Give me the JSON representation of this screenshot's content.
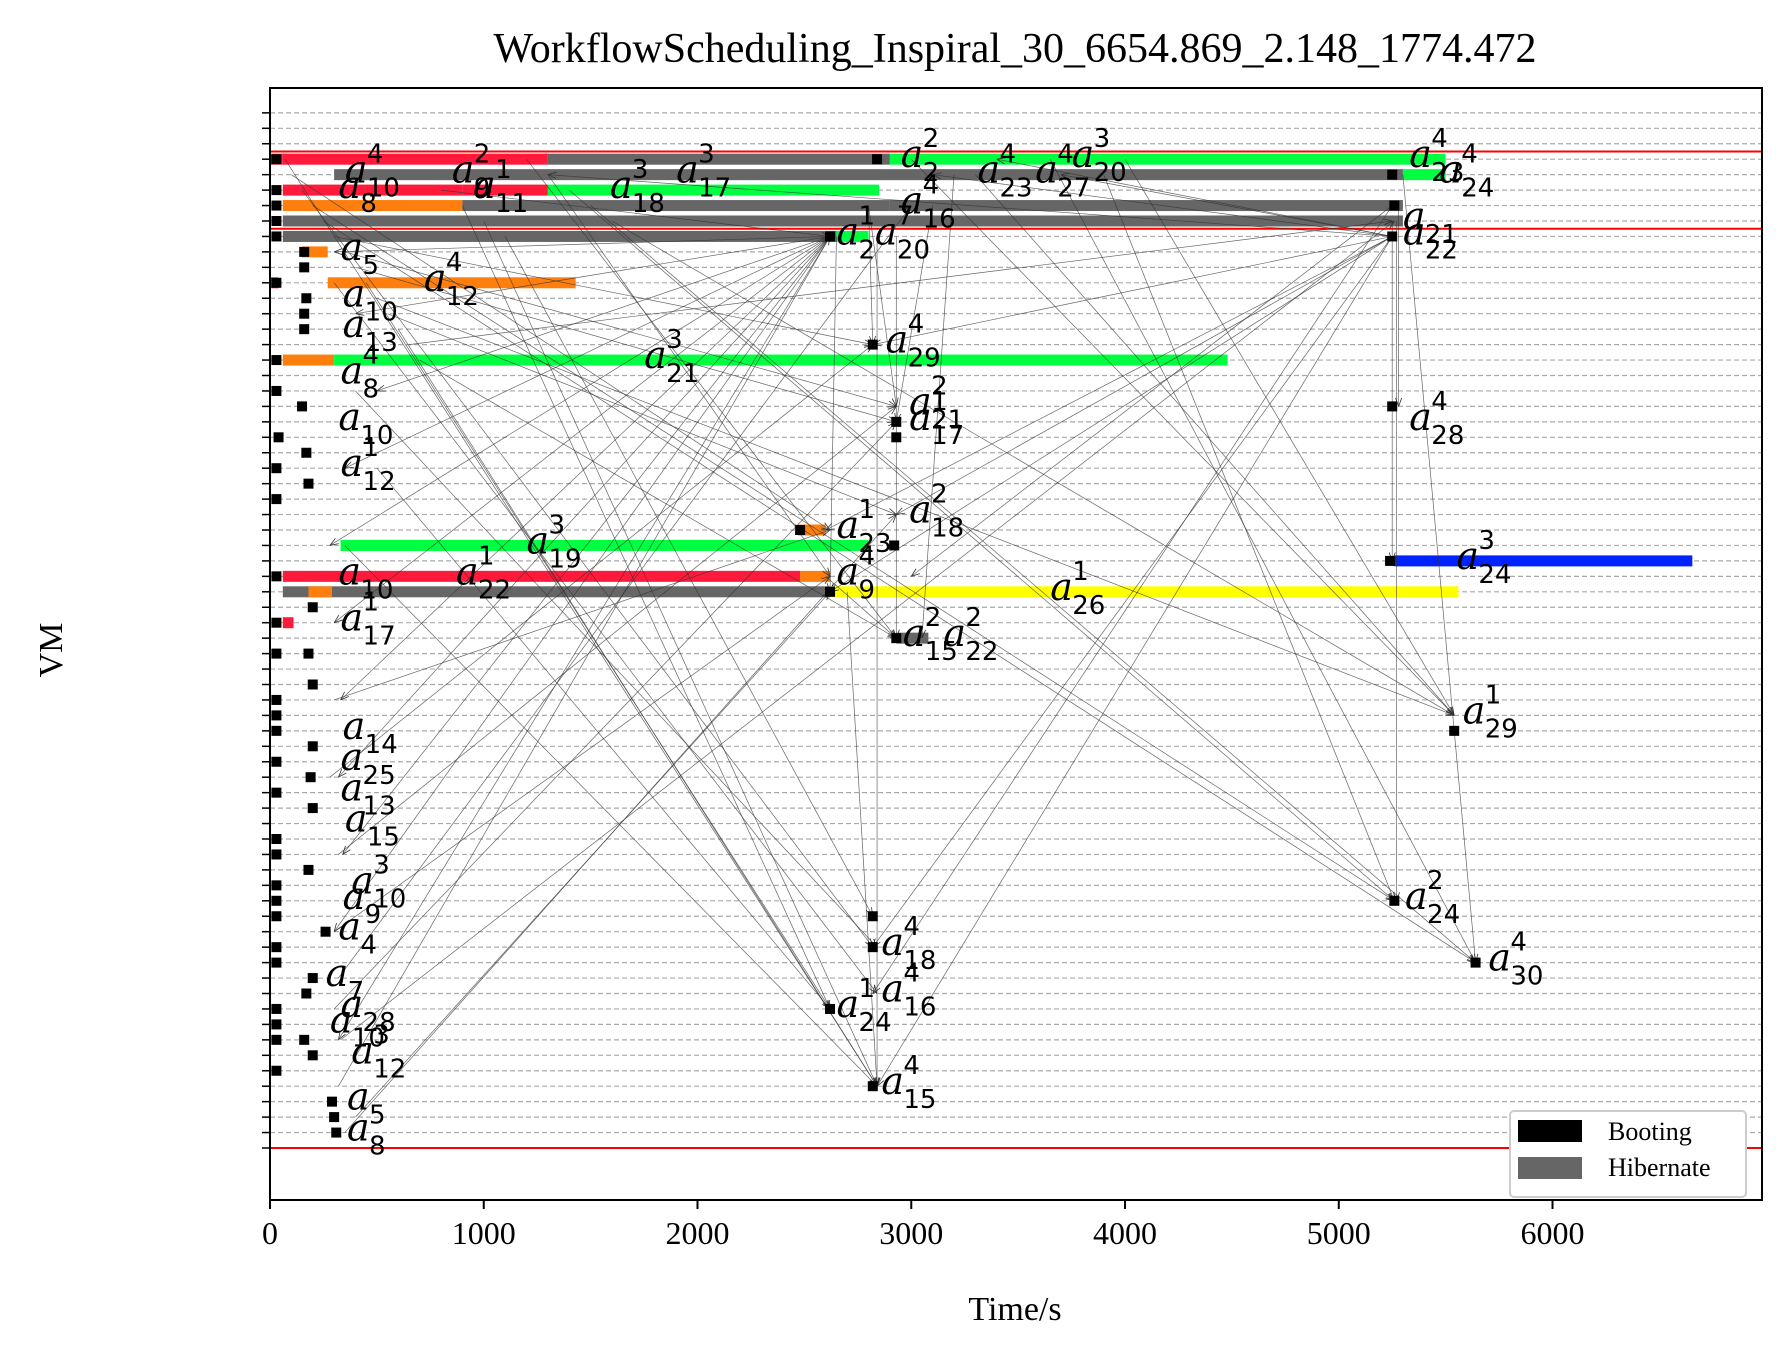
{
  "chart_data": {
    "type": "gantt",
    "title": "WorkflowScheduling_Inspiral_30_6654.869_2.148_1774.472",
    "xlabel": "Time/s",
    "ylabel": "VM",
    "xlim": [
      0,
      6980
    ],
    "xticks": [
      0,
      1000,
      2000,
      3000,
      4000,
      5000,
      6000
    ],
    "row_count": 68,
    "grid": "dashed horizontal",
    "legend": {
      "placement": "bottom-right",
      "entries": [
        {
          "label": "Booting",
          "color": "#000000"
        },
        {
          "label": "Hibernate",
          "color": "#666666"
        }
      ]
    },
    "separators": [
      1.0,
      60.5,
      65.5
    ],
    "bars": [
      {
        "row": 65,
        "start": 0,
        "end": 60,
        "kind": "color",
        "color": "#ff1a3c"
      },
      {
        "row": 65,
        "start": 60,
        "end": 1300,
        "kind": "color",
        "color": "#ff1a3c"
      },
      {
        "row": 65,
        "start": 1300,
        "end": 2900,
        "kind": "hibernate"
      },
      {
        "row": 65,
        "start": 2900,
        "end": 5500,
        "kind": "color",
        "color": "#00ff40"
      },
      {
        "row": 64,
        "start": 300,
        "end": 5300,
        "kind": "hibernate"
      },
      {
        "row": 64,
        "start": 5300,
        "end": 5500,
        "kind": "color",
        "color": "#00ff40"
      },
      {
        "row": 63,
        "start": 60,
        "end": 900,
        "kind": "color",
        "color": "#ff1a3c"
      },
      {
        "row": 63,
        "start": 900,
        "end": 1300,
        "kind": "color",
        "color": "#ff1a3c"
      },
      {
        "row": 63,
        "start": 1300,
        "end": 2850,
        "kind": "color",
        "color": "#00ff40"
      },
      {
        "row": 62,
        "start": 60,
        "end": 900,
        "kind": "color",
        "color": "#ff7f0e"
      },
      {
        "row": 62,
        "start": 900,
        "end": 2900,
        "kind": "hibernate"
      },
      {
        "row": 62,
        "start": 2900,
        "end": 5300,
        "kind": "hibernate"
      },
      {
        "row": 61,
        "start": 60,
        "end": 5300,
        "kind": "hibernate"
      },
      {
        "row": 60,
        "start": 60,
        "end": 2650,
        "kind": "hibernate"
      },
      {
        "row": 60,
        "start": 2650,
        "end": 2800,
        "kind": "color",
        "color": "#00ff40"
      },
      {
        "row": 59,
        "start": 150,
        "end": 270,
        "kind": "color",
        "color": "#ff7f0e"
      },
      {
        "row": 57,
        "start": 270,
        "end": 1430,
        "kind": "color",
        "color": "#ff7f0e"
      },
      {
        "row": 57,
        "start": 0,
        "end": 40,
        "kind": "color",
        "color": "#ff1a3c"
      },
      {
        "row": 52,
        "start": 60,
        "end": 300,
        "kind": "color",
        "color": "#ff7f0e"
      },
      {
        "row": 52,
        "start": 300,
        "end": 4480,
        "kind": "color",
        "color": "#00ff40"
      },
      {
        "row": 41,
        "start": 2470,
        "end": 2600,
        "kind": "color",
        "color": "#ff7f0e"
      },
      {
        "row": 40,
        "start": 330,
        "end": 2800,
        "kind": "color",
        "color": "#00ff40"
      },
      {
        "row": 39,
        "start": 5260,
        "end": 6654,
        "kind": "color",
        "color": "#0022ff"
      },
      {
        "row": 38,
        "start": 60,
        "end": 2480,
        "kind": "color",
        "color": "#ff1a3c"
      },
      {
        "row": 38,
        "start": 2480,
        "end": 2620,
        "kind": "color",
        "color": "#ff7f0e"
      },
      {
        "row": 37,
        "start": 60,
        "end": 2620,
        "kind": "hibernate"
      },
      {
        "row": 37,
        "start": 2620,
        "end": 5560,
        "kind": "color",
        "color": "#ffff00"
      },
      {
        "row": 37,
        "start": 180,
        "end": 290,
        "kind": "color",
        "color": "#ff7f0e"
      },
      {
        "row": 35,
        "start": 60,
        "end": 110,
        "kind": "color",
        "color": "#ff1a3c"
      },
      {
        "row": 34,
        "start": 2930,
        "end": 3080,
        "kind": "hibernate"
      }
    ],
    "boot_markers": [
      [
        30,
        65
      ],
      [
        30,
        63
      ],
      [
        30,
        62
      ],
      [
        30,
        61
      ],
      [
        30,
        60
      ],
      [
        30,
        57
      ],
      [
        30,
        52
      ],
      [
        30,
        50
      ],
      [
        40,
        47
      ],
      [
        30,
        45
      ],
      [
        30,
        43
      ],
      [
        30,
        38
      ],
      [
        30,
        35
      ],
      [
        30,
        33
      ],
      [
        30,
        30
      ],
      [
        30,
        29
      ],
      [
        30,
        28
      ],
      [
        30,
        26
      ],
      [
        30,
        24
      ],
      [
        30,
        21
      ],
      [
        30,
        20
      ],
      [
        30,
        18
      ],
      [
        30,
        17
      ],
      [
        30,
        16
      ],
      [
        30,
        14
      ],
      [
        30,
        13
      ],
      [
        30,
        10
      ],
      [
        30,
        9
      ],
      [
        30,
        8
      ],
      [
        30,
        6
      ],
      [
        160,
        59
      ],
      [
        160,
        58
      ],
      [
        170,
        56
      ],
      [
        160,
        55
      ],
      [
        160,
        54
      ],
      [
        150,
        49
      ],
      [
        170,
        46
      ],
      [
        180,
        44
      ],
      [
        200,
        36
      ],
      [
        180,
        33
      ],
      [
        200,
        31
      ],
      [
        200,
        27
      ],
      [
        190,
        25
      ],
      [
        200,
        23
      ],
      [
        180,
        19
      ],
      [
        200,
        12
      ],
      [
        170,
        11
      ],
      [
        160,
        8
      ],
      [
        200,
        7
      ],
      [
        260,
        15
      ],
      [
        290,
        4
      ],
      [
        300,
        3
      ],
      [
        310,
        2
      ],
      [
        2480,
        41
      ],
      [
        2930,
        48
      ],
      [
        2930,
        47
      ],
      [
        2920,
        40
      ],
      [
        2930,
        34
      ],
      [
        2620,
        60
      ],
      [
        2620,
        37
      ],
      [
        2820,
        53
      ],
      [
        2820,
        16
      ],
      [
        2820,
        14
      ],
      [
        2620,
        10
      ],
      [
        2820,
        5
      ],
      [
        5240,
        39
      ],
      [
        5250,
        60
      ],
      [
        5260,
        62
      ],
      [
        5250,
        49
      ],
      [
        5260,
        17
      ],
      [
        5540,
        28
      ],
      [
        5640,
        13
      ],
      [
        2840,
        65
      ],
      [
        5250,
        64
      ]
    ],
    "task_labels": [
      {
        "name": "a",
        "sub": "9",
        "sup": "4",
        "x": 2650,
        "row": 38
      },
      {
        "name": "a",
        "sub": "26",
        "sup": "1",
        "x": 3650,
        "row": 37
      },
      {
        "name": "a",
        "sub": "22",
        "sup": "1",
        "x": 870,
        "row": 38
      },
      {
        "name": "a",
        "sub": "19",
        "sup": "3",
        "x": 1200,
        "row": 40
      },
      {
        "name": "a",
        "sub": "24",
        "sup": "3",
        "x": 5550,
        "row": 39
      },
      {
        "name": "a",
        "sub": "23",
        "sup": "1",
        "x": 2650,
        "row": 41
      },
      {
        "name": "a",
        "sub": "18",
        "sup": "2",
        "x": 2990,
        "row": 42
      },
      {
        "name": "a",
        "sub": "21",
        "sup": "3",
        "x": 1750,
        "row": 52
      },
      {
        "name": "a",
        "sub": "29",
        "sup": "4",
        "x": 2880,
        "row": 53
      },
      {
        "name": "a",
        "sub": "28",
        "sup": "4",
        "x": 5330,
        "row": 48
      },
      {
        "name": "a",
        "sub": "21",
        "sup": "2",
        "x": 2990,
        "row": 49
      },
      {
        "name": "a",
        "sub": "17",
        "sup": "1",
        "x": 2990,
        "row": 48
      },
      {
        "name": "a",
        "sub": "12",
        "sup": "4",
        "x": 720,
        "row": 57
      },
      {
        "name": "a",
        "sub": "18",
        "sup": "3",
        "x": 1590,
        "row": 63
      },
      {
        "name": "a",
        "sub": "17",
        "sup": "3",
        "x": 1900,
        "row": 64
      },
      {
        "name": "a",
        "sub": "11",
        "sup": "1",
        "x": 950,
        "row": 63
      },
      {
        "name": "a",
        "sub": "29",
        "sup": "1",
        "x": 5580,
        "row": 29
      },
      {
        "name": "a",
        "sub": "15",
        "sup": "2",
        "x": 2960,
        "row": 34
      },
      {
        "name": "a",
        "sub": "22",
        "sup": "2",
        "x": 3150,
        "row": 34
      },
      {
        "name": "a",
        "sub": "24",
        "sup": "2",
        "x": 5310,
        "row": 17
      },
      {
        "name": "a",
        "sub": "30",
        "sup": "4",
        "x": 5700,
        "row": 13
      },
      {
        "name": "a",
        "sub": "18",
        "sup": "4",
        "x": 2860,
        "row": 14
      },
      {
        "name": "a",
        "sub": "16",
        "sup": "4",
        "x": 2860,
        "row": 11
      },
      {
        "name": "a",
        "sub": "24",
        "sup": "1",
        "x": 2650,
        "row": 10
      },
      {
        "name": "a",
        "sub": "15",
        "sup": "4",
        "x": 2860,
        "row": 5
      },
      {
        "name": "a",
        "sub": "20",
        "sup": "3",
        "x": 3750,
        "row": 65
      },
      {
        "name": "a",
        "sub": "23",
        "sup": "4",
        "x": 5330,
        "row": 65
      },
      {
        "name": "a",
        "sub": "24",
        "sup": "4",
        "x": 5470,
        "row": 64
      },
      {
        "name": "a",
        "sub": "2",
        "sup": "1",
        "x": 2650,
        "row": 60
      },
      {
        "name": "a",
        "sub": "20",
        "sup": "7",
        "x": 2830,
        "row": 60
      },
      {
        "name": "a",
        "sub": "16",
        "sup": "4",
        "x": 2950,
        "row": 62
      },
      {
        "name": "a",
        "sub": "2",
        "sup": "2",
        "x": 2950,
        "row": 65
      },
      {
        "name": "a",
        "sub": "23",
        "sup": "4",
        "x": 3310,
        "row": 64
      },
      {
        "name": "a",
        "sub": "27",
        "sup": "4",
        "x": 3580,
        "row": 64
      },
      {
        "name": "a",
        "sub": "21",
        "sup": "",
        "x": 5300,
        "row": 61
      },
      {
        "name": "a",
        "sub": "22",
        "sup": "",
        "x": 5300,
        "row": 60
      },
      {
        "name": "a",
        "sub": "10",
        "sup": "4",
        "x": 350,
        "row": 64
      },
      {
        "name": "a",
        "sub": "9",
        "sup": "2",
        "x": 850,
        "row": 64
      },
      {
        "name": "a",
        "sub": "8",
        "sup": "",
        "x": 320,
        "row": 63
      },
      {
        "name": "a",
        "sub": "5",
        "sup": "",
        "x": 330,
        "row": 59
      },
      {
        "name": "a",
        "sub": "10",
        "sup": "",
        "x": 340,
        "row": 56
      },
      {
        "name": "a",
        "sub": "13",
        "sup": "",
        "x": 340,
        "row": 54
      },
      {
        "name": "a",
        "sub": "8",
        "sup": "4",
        "x": 330,
        "row": 51
      },
      {
        "name": "a",
        "sub": "10",
        "sup": "",
        "x": 320,
        "row": 48
      },
      {
        "name": "a",
        "sub": "12",
        "sup": "1",
        "x": 330,
        "row": 45
      },
      {
        "name": "a",
        "sub": "10",
        "sup": "",
        "x": 320,
        "row": 38
      },
      {
        "name": "a",
        "sub": "17",
        "sup": "1",
        "x": 330,
        "row": 35
      },
      {
        "name": "a",
        "sub": "14",
        "sup": "",
        "x": 340,
        "row": 28
      },
      {
        "name": "a",
        "sub": "25",
        "sup": "",
        "x": 330,
        "row": 26
      },
      {
        "name": "a",
        "sub": "13",
        "sup": "",
        "x": 330,
        "row": 24
      },
      {
        "name": "a",
        "sub": "15",
        "sup": "",
        "x": 350,
        "row": 22
      },
      {
        "name": "a",
        "sub": "10",
        "sup": "3",
        "x": 380,
        "row": 18
      },
      {
        "name": "a",
        "sub": "9",
        "sup": "",
        "x": 340,
        "row": 17
      },
      {
        "name": "a",
        "sub": "4",
        "sup": "",
        "x": 320,
        "row": 15
      },
      {
        "name": "a",
        "sub": "7",
        "sup": "",
        "x": 260,
        "row": 12
      },
      {
        "name": "a",
        "sub": "28",
        "sup": "",
        "x": 330,
        "row": 10
      },
      {
        "name": "a",
        "sub": "10",
        "sup": "",
        "x": 280,
        "row": 9
      },
      {
        "name": "a",
        "sub": "12",
        "sup": "3",
        "x": 380,
        "row": 7
      },
      {
        "name": "a",
        "sub": "5",
        "sup": "",
        "x": 360,
        "row": 4
      },
      {
        "name": "a",
        "sub": "8",
        "sup": "",
        "x": 360,
        "row": 2
      }
    ],
    "edges": [
      [
        70,
        65,
        2840,
        5
      ],
      [
        100,
        64,
        2620,
        41
      ],
      [
        150,
        63,
        2820,
        14
      ],
      [
        200,
        62,
        5260,
        17
      ],
      [
        250,
        61,
        5640,
        13
      ],
      [
        300,
        60,
        2820,
        53
      ],
      [
        350,
        59,
        2930,
        49
      ],
      [
        400,
        58,
        2930,
        48
      ],
      [
        450,
        57,
        2620,
        10
      ],
      [
        500,
        56,
        5540,
        29
      ],
      [
        550,
        55,
        2930,
        42
      ],
      [
        600,
        54,
        2840,
        5
      ],
      [
        650,
        53,
        5250,
        61
      ],
      [
        700,
        52,
        2930,
        34
      ],
      [
        800,
        63,
        2620,
        60
      ],
      [
        900,
        62,
        2620,
        10
      ],
      [
        1000,
        61,
        2840,
        5
      ],
      [
        1100,
        60,
        2820,
        16
      ],
      [
        1200,
        65,
        2930,
        34
      ],
      [
        1300,
        64,
        2620,
        38
      ],
      [
        1400,
        63,
        5260,
        17
      ],
      [
        1500,
        62,
        5640,
        13
      ],
      [
        1600,
        61,
        5540,
        29
      ],
      [
        2620,
        60,
        300,
        59
      ],
      [
        2620,
        60,
        400,
        55
      ],
      [
        2620,
        60,
        500,
        50
      ],
      [
        2620,
        60,
        350,
        45
      ],
      [
        2620,
        60,
        280,
        40
      ],
      [
        2620,
        60,
        300,
        35
      ],
      [
        2620,
        60,
        330,
        30
      ],
      [
        2620,
        60,
        320,
        25
      ],
      [
        2620,
        60,
        340,
        20
      ],
      [
        2620,
        60,
        300,
        15
      ],
      [
        2620,
        60,
        320,
        8
      ],
      [
        2840,
        60,
        2840,
        5
      ],
      [
        2930,
        60,
        2930,
        34
      ],
      [
        2800,
        62,
        2820,
        53
      ],
      [
        2800,
        62,
        2930,
        49
      ],
      [
        3100,
        62,
        2930,
        48
      ],
      [
        3200,
        64,
        3050,
        34
      ],
      [
        5250,
        60,
        2840,
        5
      ],
      [
        5250,
        60,
        2820,
        14
      ],
      [
        5250,
        60,
        2620,
        37
      ],
      [
        5250,
        60,
        2820,
        53
      ],
      [
        5250,
        60,
        2930,
        42
      ],
      [
        5250,
        60,
        1300,
        64
      ],
      [
        5250,
        60,
        3100,
        64
      ],
      [
        5250,
        60,
        3400,
        65
      ],
      [
        5250,
        60,
        3700,
        64
      ],
      [
        5250,
        60,
        2600,
        41
      ],
      [
        5250,
        61,
        5250,
        39
      ],
      [
        5270,
        61,
        5270,
        17
      ],
      [
        5300,
        64,
        5640,
        13
      ],
      [
        5280,
        62,
        5280,
        49
      ],
      [
        5250,
        62,
        2820,
        11
      ],
      [
        5250,
        62,
        3000,
        38
      ],
      [
        2600,
        38,
        2930,
        34
      ],
      [
        2700,
        37,
        2840,
        5
      ],
      [
        3000,
        65,
        5540,
        29
      ],
      [
        3300,
        64,
        5540,
        29
      ],
      [
        3650,
        65,
        5640,
        13
      ],
      [
        3900,
        64,
        5260,
        17
      ],
      [
        4000,
        65,
        5540,
        29
      ],
      [
        2650,
        60,
        2620,
        37
      ],
      [
        300,
        57,
        2840,
        11
      ],
      [
        400,
        50,
        2840,
        14
      ],
      [
        500,
        45,
        2620,
        10
      ],
      [
        350,
        40,
        2840,
        5
      ],
      [
        300,
        30,
        2620,
        41
      ],
      [
        280,
        25,
        2820,
        53
      ],
      [
        320,
        20,
        2930,
        49
      ],
      [
        300,
        10,
        2930,
        48
      ],
      [
        320,
        5,
        2620,
        60
      ],
      [
        400,
        3,
        2620,
        37
      ],
      [
        350,
        2,
        2930,
        42
      ],
      [
        330,
        8,
        5260,
        61
      ],
      [
        300,
        15,
        2620,
        38
      ],
      [
        320,
        12,
        3000,
        62
      ]
    ]
  },
  "legend_labels": {
    "booting": "Booting",
    "hibernate": "Hibernate"
  },
  "texts": {
    "title": "WorkflowScheduling_Inspiral_30_6654.869_2.148_1774.472",
    "xlabel": "Time/s",
    "ylabel": "VM"
  }
}
